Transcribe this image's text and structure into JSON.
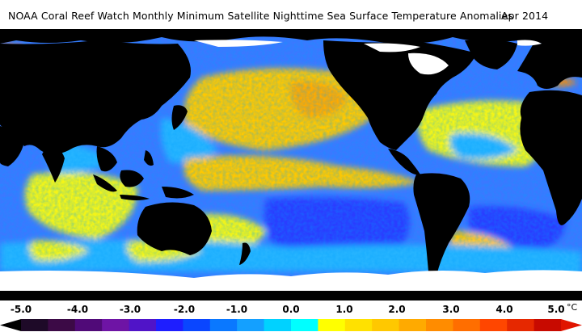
{
  "header": {
    "title": "NOAA Coral Reef Watch Monthly Minimum Satellite Nighttime Sea Surface Temperature Anomalies",
    "date": "Apr 2014"
  },
  "legend": {
    "tick_labels": [
      "-5.0",
      "-4.0",
      "-3.0",
      "-2.0",
      "-1.0",
      "0.0",
      "1.0",
      "2.0",
      "3.0",
      "4.0",
      "5.0"
    ],
    "unit": "°C",
    "range": [
      -5.0,
      5.0
    ],
    "colors": [
      "#1e0a28",
      "#3c0a46",
      "#500a78",
      "#6e14a5",
      "#5014c8",
      "#1e1eff",
      "#0a46ff",
      "#0a78ff",
      "#14a0ff",
      "#00d2ff",
      "#00ffff",
      "#ffff00",
      "#ffe100",
      "#ffc800",
      "#ffaa00",
      "#ff8c00",
      "#ff6e00",
      "#ff4600",
      "#e62800",
      "#c80a00"
    ]
  },
  "map": {
    "land_color": "#000000",
    "ice_color": "#ffffff",
    "ocean_anomaly_colors": {
      "strong_cool": "#2a3cff",
      "cool": "#3c78ff",
      "slight_cool": "#28b4ff",
      "neutral": "#00e6ff",
      "slight_warm": "#f5f514",
      "warm": "#ffc800",
      "strong_warm": "#ff6e00"
    }
  }
}
